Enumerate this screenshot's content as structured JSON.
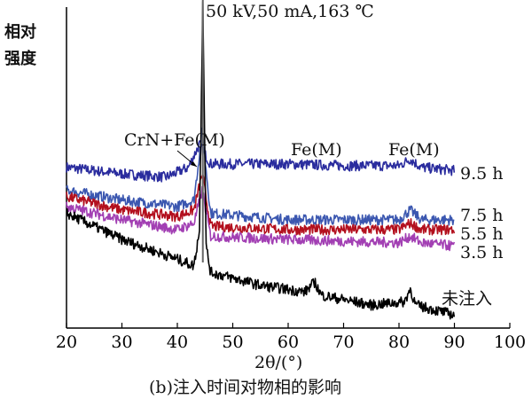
{
  "chart_data": {
    "type": "line",
    "title": "50 kV,50 mA,163 ℃",
    "ylabel_lines": [
      "相对",
      "强度"
    ],
    "xlabel": "2θ/(°)",
    "caption": "(b)注入时间对物相的影响",
    "xlim": [
      20,
      100
    ],
    "ylim": [
      0,
      100
    ],
    "y_units": "a.u.",
    "xticks": [
      20,
      30,
      40,
      50,
      60,
      70,
      80,
      90,
      100
    ],
    "grid": false,
    "annotations": [
      {
        "text": "CrN+Fe(M)",
        "x": 44,
        "arrow": true
      },
      {
        "text": "Fe(M)",
        "x": 65
      },
      {
        "text": "Fe(M)",
        "x": 82
      }
    ],
    "series": [
      {
        "name": "9.5 h",
        "color": "#2a2c9e",
        "x": [
          20,
          30,
          38,
          42,
          44,
          46,
          60,
          70,
          80,
          82,
          84,
          90
        ],
        "y": [
          49,
          47,
          46,
          49,
          56,
          50,
          50,
          49.5,
          49.5,
          51.5,
          49,
          48
        ]
      },
      {
        "name": "7.5 h",
        "color": "#3b57b0",
        "x": [
          20,
          30,
          40,
          43,
          44.5,
          46,
          60,
          80,
          82,
          84,
          90
        ],
        "y": [
          42,
          39,
          37,
          39,
          60,
          35,
          33,
          33,
          36,
          33,
          33
        ]
      },
      {
        "name": "5.5 h",
        "color": "#b3101e",
        "x": [
          20,
          30,
          40,
          43,
          44.5,
          46,
          60,
          80,
          82,
          84,
          90
        ],
        "y": [
          40,
          36,
          34,
          36,
          47,
          31,
          30,
          30,
          32,
          30,
          30
        ]
      },
      {
        "name": "3.5 h",
        "color": "#a23fb3",
        "x": [
          20,
          30,
          40,
          43,
          44.5,
          46,
          60,
          80,
          82,
          84,
          90
        ],
        "y": [
          37,
          33,
          30,
          32,
          42,
          28,
          27,
          26,
          28,
          26,
          25
        ]
      },
      {
        "name": "未注入",
        "color": "#000000",
        "x": [
          20,
          30,
          40,
          43,
          44,
          44.6,
          45.2,
          46,
          55,
          63,
          64.8,
          66,
          75,
          81,
          82,
          83,
          90
        ],
        "y": [
          35,
          27,
          21,
          19,
          30,
          100,
          25,
          17,
          13,
          11,
          14,
          10,
          7,
          8,
          12,
          7,
          4
        ]
      }
    ]
  }
}
